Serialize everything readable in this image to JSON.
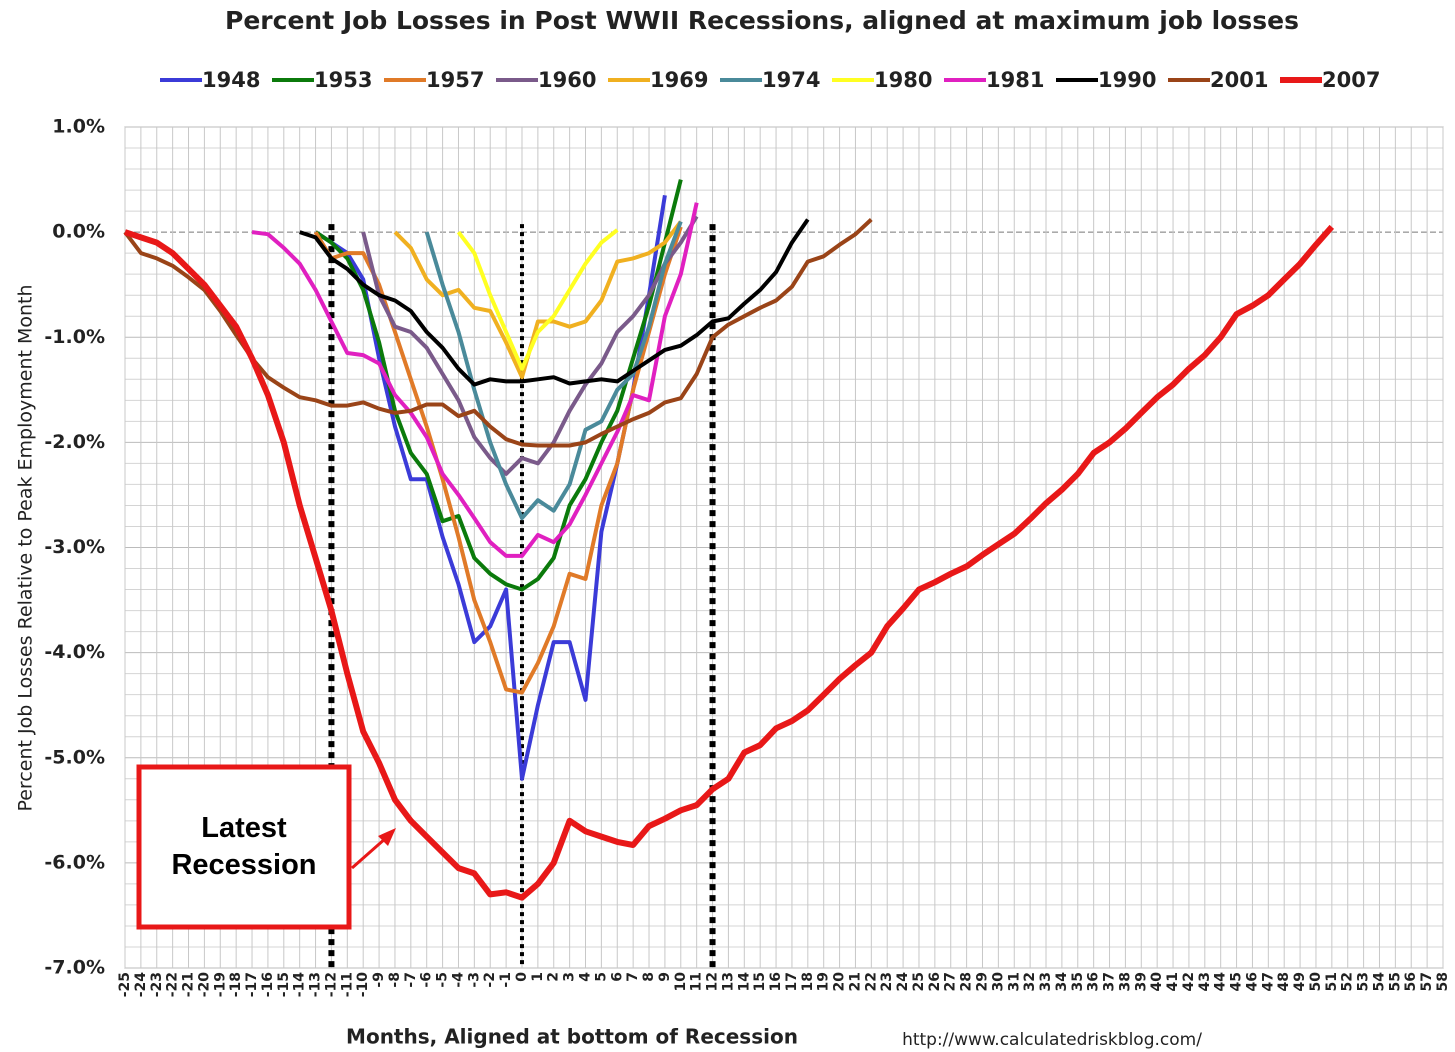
{
  "chart_data": {
    "type": "line",
    "title": "Percent Job Losses in Post WWII Recessions, aligned at maximum job losses",
    "y_label": "Percent Job Losses Relative to Peak Employment Month",
    "x_label": "Months, Aligned at bottom of Recession",
    "source": "http://www.calculatedriskblog.com/",
    "annotation": "Latest Recession",
    "xlim": [
      -25,
      58
    ],
    "xticks": [
      -25,
      -24,
      -23,
      -22,
      -21,
      -20,
      -19,
      -18,
      -17,
      -16,
      -15,
      -14,
      -13,
      -12,
      -11,
      -10,
      -9,
      -8,
      -7,
      -6,
      -5,
      -4,
      -3,
      -2,
      -1,
      0,
      1,
      2,
      3,
      4,
      5,
      6,
      7,
      8,
      9,
      10,
      11,
      12,
      13,
      14,
      15,
      16,
      17,
      18,
      19,
      20,
      21,
      22,
      23,
      24,
      25,
      26,
      27,
      28,
      29,
      30,
      31,
      32,
      33,
      34,
      35,
      36,
      37,
      38,
      39,
      40,
      41,
      42,
      43,
      44,
      45,
      46,
      47,
      48,
      49,
      50,
      51,
      52,
      53,
      54,
      55,
      56,
      57,
      58
    ],
    "ylim": [
      -7,
      1
    ],
    "yticks": [
      {
        "value": -7,
        "label": "-7.0%"
      },
      {
        "value": -6,
        "label": "-6.0%"
      },
      {
        "value": -5,
        "label": "-5.0%"
      },
      {
        "value": -4,
        "label": "-4.0%"
      },
      {
        "value": -3,
        "label": "-3.0%"
      },
      {
        "value": -2,
        "label": "-2.0%"
      },
      {
        "value": -1,
        "label": "-1.0%"
      },
      {
        "value": 0,
        "label": "0.0%"
      },
      {
        "value": 1,
        "label": "1.0%"
      }
    ],
    "grid": true,
    "legend": "top",
    "vlines": [
      -12,
      0,
      12
    ],
    "series": [
      {
        "name": "1948",
        "color": "#3b3bd8",
        "x": [
          -13,
          -12,
          -11,
          -10,
          -9,
          -8,
          -7,
          -6,
          -5,
          -4,
          -3,
          -2,
          -1,
          0,
          1,
          2,
          3,
          4,
          5,
          6,
          7,
          8,
          9
        ],
        "values": [
          0,
          -0.1,
          -0.2,
          -0.45,
          -1.2,
          -1.85,
          -2.35,
          -2.35,
          -2.9,
          -3.35,
          -3.9,
          -3.75,
          -3.4,
          -5.2,
          -4.5,
          -3.9,
          -3.9,
          -4.45,
          -2.85,
          -2.2,
          -1.5,
          -0.6,
          0.35
        ]
      },
      {
        "name": "1953",
        "color": "#0b7a0b",
        "x": [
          -13,
          -12,
          -11,
          -10,
          -9,
          -8,
          -7,
          -6,
          -5,
          -4,
          -3,
          -2,
          -1,
          0,
          1,
          2,
          3,
          4,
          5,
          6,
          7,
          8,
          9,
          10
        ],
        "values": [
          0,
          -0.1,
          -0.25,
          -0.55,
          -1.05,
          -1.7,
          -2.1,
          -2.3,
          -2.75,
          -2.7,
          -3.1,
          -3.25,
          -3.35,
          -3.4,
          -3.3,
          -3.1,
          -2.6,
          -2.35,
          -2,
          -1.7,
          -1.2,
          -0.7,
          -0.1,
          0.5
        ]
      },
      {
        "name": "1957",
        "color": "#e07a28",
        "x": [
          -13,
          -12,
          -11,
          -10,
          -9,
          -8,
          -7,
          -6,
          -5,
          -4,
          -3,
          -2,
          -1,
          0,
          1,
          2,
          3,
          4,
          5,
          6,
          7,
          8,
          9,
          10
        ],
        "values": [
          0,
          -0.25,
          -0.2,
          -0.2,
          -0.5,
          -0.95,
          -1.4,
          -1.85,
          -2.35,
          -2.9,
          -3.5,
          -3.9,
          -4.35,
          -4.38,
          -4.1,
          -3.75,
          -3.25,
          -3.3,
          -2.6,
          -2.2,
          -1.5,
          -0.95,
          -0.4,
          0.05
        ]
      },
      {
        "name": "1960",
        "color": "#7a5a8a",
        "x": [
          -10,
          -9,
          -8,
          -7,
          -6,
          -5,
          -4,
          -3,
          -2,
          -1,
          0,
          1,
          2,
          3,
          4,
          5,
          6,
          7,
          8,
          9,
          10,
          11
        ],
        "values": [
          0,
          -0.6,
          -0.9,
          -0.95,
          -1.1,
          -1.35,
          -1.6,
          -1.95,
          -2.15,
          -2.3,
          -2.15,
          -2.2,
          -2,
          -1.7,
          -1.45,
          -1.25,
          -0.95,
          -0.8,
          -0.6,
          -0.3,
          -0.1,
          0.15
        ]
      },
      {
        "name": "1969",
        "color": "#f0b020",
        "x": [
          -8,
          -7,
          -6,
          -5,
          -4,
          -3,
          -2,
          -1,
          0,
          1,
          2,
          3,
          4,
          5,
          6,
          7,
          8,
          9,
          10
        ],
        "values": [
          0,
          -0.15,
          -0.45,
          -0.6,
          -0.55,
          -0.72,
          -0.75,
          -1.05,
          -1.38,
          -0.85,
          -0.85,
          -0.9,
          -0.85,
          -0.65,
          -0.28,
          -0.25,
          -0.2,
          -0.1,
          0.1
        ]
      },
      {
        "name": "1974",
        "color": "#4a8a9a",
        "x": [
          -6,
          -5,
          -4,
          -3,
          -2,
          -1,
          0,
          1,
          2,
          3,
          4,
          5,
          6,
          7,
          8,
          9,
          10
        ],
        "values": [
          0,
          -0.5,
          -0.95,
          -1.5,
          -2,
          -2.4,
          -2.72,
          -2.55,
          -2.65,
          -2.4,
          -1.88,
          -1.8,
          -1.5,
          -1.35,
          -0.9,
          -0.3,
          0.1
        ]
      },
      {
        "name": "1980",
        "color": "#ffff22",
        "x": [
          -4,
          -3,
          -2,
          -1,
          0,
          1,
          2,
          3,
          4,
          5,
          6
        ],
        "values": [
          0,
          -0.2,
          -0.6,
          -0.95,
          -1.3,
          -0.95,
          -0.8,
          -0.55,
          -0.3,
          -0.1,
          0.02
        ]
      },
      {
        "name": "1981",
        "color": "#e020c0",
        "x": [
          -17,
          -16,
          -15,
          -14,
          -13,
          -12,
          -11,
          -10,
          -9,
          -8,
          -7,
          -6,
          -5,
          -4,
          -3,
          -2,
          -1,
          0,
          1,
          2,
          3,
          4,
          5,
          6,
          7,
          8,
          9,
          10,
          11
        ],
        "values": [
          0,
          -0.02,
          -0.15,
          -0.3,
          -0.55,
          -0.85,
          -1.15,
          -1.17,
          -1.25,
          -1.55,
          -1.72,
          -1.95,
          -2.3,
          -2.5,
          -2.72,
          -2.95,
          -3.08,
          -3.08,
          -2.88,
          -2.95,
          -2.78,
          -2.5,
          -2.2,
          -1.9,
          -1.55,
          -1.6,
          -0.8,
          -0.4,
          0.28
        ]
      },
      {
        "name": "1990",
        "color": "#000000",
        "x": [
          -14,
          -13,
          -12,
          -11,
          -10,
          -9,
          -8,
          -7,
          -6,
          -5,
          -4,
          -3,
          -2,
          -1,
          0,
          1,
          2,
          3,
          4,
          5,
          6,
          7,
          8,
          9,
          10,
          11,
          12,
          13,
          14,
          15,
          16,
          17,
          18
        ],
        "values": [
          0,
          -0.05,
          -0.25,
          -0.35,
          -0.5,
          -0.6,
          -0.65,
          -0.75,
          -0.95,
          -1.1,
          -1.3,
          -1.45,
          -1.4,
          -1.42,
          -1.42,
          -1.4,
          -1.38,
          -1.44,
          -1.42,
          -1.4,
          -1.42,
          -1.32,
          -1.22,
          -1.12,
          -1.08,
          -0.98,
          -0.85,
          -0.82,
          -0.68,
          -0.55,
          -0.38,
          -0.1,
          0.12
        ]
      },
      {
        "name": "2001",
        "color": "#9a4418",
        "x": [
          -25,
          -24,
          -23,
          -22,
          -21,
          -20,
          -19,
          -18,
          -17,
          -16,
          -15,
          -14,
          -13,
          -12,
          -11,
          -10,
          -9,
          -8,
          -7,
          -6,
          -5,
          -4,
          -3,
          -2,
          -1,
          0,
          1,
          2,
          3,
          4,
          5,
          6,
          7,
          8,
          9,
          10,
          11,
          12,
          13,
          14,
          15,
          16,
          17,
          18,
          19,
          20,
          21,
          22
        ],
        "values": [
          0,
          -0.2,
          -0.25,
          -0.32,
          -0.43,
          -0.55,
          -0.75,
          -0.98,
          -1.2,
          -1.38,
          -1.48,
          -1.57,
          -1.6,
          -1.65,
          -1.65,
          -1.62,
          -1.68,
          -1.72,
          -1.7,
          -1.64,
          -1.64,
          -1.75,
          -1.7,
          -1.85,
          -1.97,
          -2.02,
          -2.03,
          -2.03,
          -2.03,
          -2,
          -1.92,
          -1.85,
          -1.78,
          -1.72,
          -1.62,
          -1.58,
          -1.35,
          -1,
          -0.88,
          -0.8,
          -0.72,
          -0.65,
          -0.52,
          -0.28,
          -0.23,
          -0.12,
          -0.02,
          0.12
        ]
      },
      {
        "name": "2007",
        "color": "#e81818",
        "x": [
          -25,
          -24,
          -23,
          -22,
          -21,
          -20,
          -19,
          -18,
          -17,
          -16,
          -15,
          -14,
          -13,
          -12,
          -11,
          -10,
          -9,
          -8,
          -7,
          -6,
          -5,
          -4,
          -3,
          -2,
          -1,
          0,
          1,
          2,
          3,
          4,
          5,
          6,
          7,
          8,
          9,
          10,
          11,
          12,
          13,
          14,
          15,
          16,
          17,
          18,
          19,
          20,
          21,
          22,
          23,
          24,
          25,
          26,
          27,
          28,
          29,
          30,
          31,
          32,
          33,
          34,
          35,
          36,
          37,
          38,
          39,
          40,
          41,
          42,
          43,
          44,
          45,
          46,
          47,
          48,
          49,
          50,
          51
        ],
        "values": [
          0,
          -0.05,
          -0.1,
          -0.2,
          -0.35,
          -0.5,
          -0.7,
          -0.9,
          -1.2,
          -1.55,
          -2,
          -2.6,
          -3.1,
          -3.6,
          -4.2,
          -4.75,
          -5.05,
          -5.4,
          -5.6,
          -5.75,
          -5.9,
          -6.05,
          -6.1,
          -6.3,
          -6.28,
          -6.33,
          -6.2,
          -6,
          -5.6,
          -5.7,
          -5.75,
          -5.8,
          -5.83,
          -5.65,
          -5.58,
          -5.5,
          -5.45,
          -5.3,
          -5.2,
          -4.95,
          -4.88,
          -4.72,
          -4.65,
          -4.55,
          -4.4,
          -4.25,
          -4.12,
          -4,
          -3.75,
          -3.58,
          -3.4,
          -3.33,
          -3.25,
          -3.18,
          -3.07,
          -2.97,
          -2.87,
          -2.73,
          -2.58,
          -2.45,
          -2.3,
          -2.1,
          -2,
          -1.87,
          -1.72,
          -1.57,
          -1.45,
          -1.3,
          -1.17,
          -1,
          -0.78,
          -0.7,
          -0.6,
          -0.45,
          -0.3,
          -0.12,
          0.05
        ]
      }
    ]
  }
}
